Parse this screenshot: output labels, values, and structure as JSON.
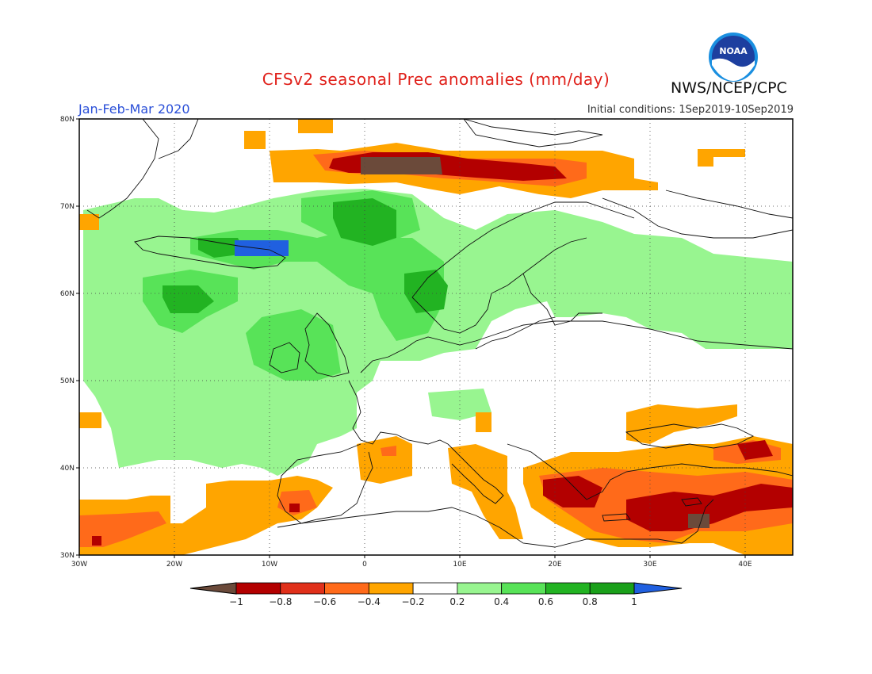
{
  "header": {
    "title": "CFSv2 seasonal Prec anomalies (mm/day)",
    "agency": "NWS/NCEP/CPC",
    "period": "Jan-Feb-Mar 2020",
    "initial_conditions": "Initial conditions: 1Sep2019-10Sep2019",
    "logo_text": "NOAA"
  },
  "map": {
    "lon_range": [
      -30,
      45
    ],
    "lat_range": [
      30,
      80
    ],
    "lat_ticks": [
      "30N",
      "40N",
      "50N",
      "60N",
      "70N",
      "80N"
    ],
    "lon_ticks": [
      "30W",
      "20W",
      "10W",
      "0",
      "10E",
      "20E",
      "30E",
      "40E"
    ],
    "grid": "dotted"
  },
  "legend": {
    "ticks": [
      "-1",
      "-0.8",
      "-0.6",
      "-0.4",
      "-0.2",
      "0.2",
      "0.4",
      "0.6",
      "0.8",
      "1"
    ],
    "colors": [
      "#6b4a3a",
      "#b30000",
      "#e0301a",
      "#ff6a1a",
      "#ffa500",
      "#ffffff",
      "#98f590",
      "#58e358",
      "#22b322",
      "#1aa01a",
      "#2060e0"
    ]
  },
  "anomaly_regions": [
    {
      "name": "barents-dry",
      "level": "-0.4",
      "color": "#ffa500"
    },
    {
      "name": "norwegian-sea-wet",
      "level": "0.4",
      "color": "#98f590"
    },
    {
      "name": "iceland-strong-wet",
      "level": "1",
      "color": "#2060e0"
    },
    {
      "name": "eastern-med-dry",
      "level": "-0.8",
      "color": "#b30000"
    },
    {
      "name": "atlantic-subtropic-dry",
      "level": "-0.4",
      "color": "#ffa500"
    }
  ]
}
